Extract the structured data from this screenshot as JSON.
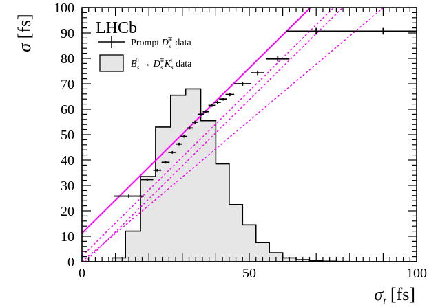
{
  "chart_data": {
    "type": "histogram+errorbar",
    "title": "",
    "experiment_label": "LHCb",
    "xlabel": "σ_t [fs]",
    "ylabel": "σ [fs]",
    "xlim": [
      0,
      100
    ],
    "ylim": [
      0,
      100
    ],
    "x_ticks": [
      0,
      50,
      100
    ],
    "y_ticks": [
      0,
      10,
      20,
      30,
      40,
      50,
      60,
      70,
      80,
      90,
      100
    ],
    "legend": {
      "placement": "top-left",
      "entries": [
        {
          "label": "Prompt D_s^∓ data",
          "style": "errorbar"
        },
        {
          "label": "B_s^0 → D_s^∓K_s^± data",
          "style": "filled-box"
        }
      ]
    },
    "histogram": {
      "name": "B_s^0 → D_s^∓K_s^± data",
      "fill": "#e6e6e6",
      "edges": [
        0,
        9,
        13,
        17.5,
        22,
        26.5,
        31,
        35.5,
        40,
        44,
        48,
        52,
        56,
        60,
        64,
        68,
        72,
        76,
        80,
        100
      ],
      "values": [
        0,
        1.5,
        12,
        33.5,
        53,
        65.5,
        68,
        55.5,
        38.5,
        22.5,
        14.5,
        7.5,
        3.5,
        1.5,
        0.8,
        0.4,
        0.2,
        0.1,
        0
      ]
    },
    "prompt_data": {
      "name": "Prompt D_s^∓ data",
      "points": [
        {
          "x": 14,
          "xerr": 4.5,
          "y": 25.8,
          "yerr": 0.6
        },
        {
          "x": 19.5,
          "xerr": 1.8,
          "y": 32.3,
          "yerr": 0.5
        },
        {
          "x": 22.5,
          "xerr": 1.2,
          "y": 36.0,
          "yerr": 0.5
        },
        {
          "x": 25,
          "xerr": 1.2,
          "y": 39.1,
          "yerr": 0.5
        },
        {
          "x": 27,
          "xerr": 1.2,
          "y": 43.0,
          "yerr": 0.5
        },
        {
          "x": 29,
          "xerr": 1.0,
          "y": 46.3,
          "yerr": 0.5
        },
        {
          "x": 30.5,
          "xerr": 1.0,
          "y": 49.3,
          "yerr": 0.5
        },
        {
          "x": 32.2,
          "xerr": 0.9,
          "y": 52.6,
          "yerr": 0.5
        },
        {
          "x": 33.8,
          "xerr": 0.9,
          "y": 54.9,
          "yerr": 0.6
        },
        {
          "x": 35.5,
          "xerr": 0.9,
          "y": 58.0,
          "yerr": 0.6
        },
        {
          "x": 37,
          "xerr": 0.9,
          "y": 59.0,
          "yerr": 0.6
        },
        {
          "x": 38.8,
          "xerr": 1.0,
          "y": 61.5,
          "yerr": 0.6
        },
        {
          "x": 40.5,
          "xerr": 1.0,
          "y": 62.7,
          "yerr": 0.6
        },
        {
          "x": 42.2,
          "xerr": 1.2,
          "y": 64.0,
          "yerr": 0.6
        },
        {
          "x": 44.2,
          "xerr": 1.3,
          "y": 65.8,
          "yerr": 0.7
        },
        {
          "x": 48,
          "xerr": 2.5,
          "y": 70.0,
          "yerr": 0.8
        },
        {
          "x": 52.5,
          "xerr": 2.0,
          "y": 74.3,
          "yerr": 0.9
        },
        {
          "x": 58.5,
          "xerr": 3.5,
          "y": 79.8,
          "yerr": 1.0
        },
        {
          "x": 70,
          "xerr": 9.0,
          "y": 90.7,
          "yerr": 1.3
        },
        {
          "x": 90,
          "xerr": 11.0,
          "y": 90.7,
          "yerr": 1.3
        }
      ]
    },
    "fit_lines": [
      {
        "style": "solid",
        "color": "#ff00ff",
        "intercept": 11.2,
        "slope": 1.3
      },
      {
        "style": "dashed",
        "color": "#ff00ff",
        "intercept": -1.3,
        "slope": 1.3
      },
      {
        "style": "dashed",
        "color": "#ff00ff",
        "intercept": 2.2,
        "slope": 1.3
      },
      {
        "style": "dashed",
        "color": "#ff00ff",
        "intercept": 0,
        "slope": 1.11
      }
    ]
  }
}
